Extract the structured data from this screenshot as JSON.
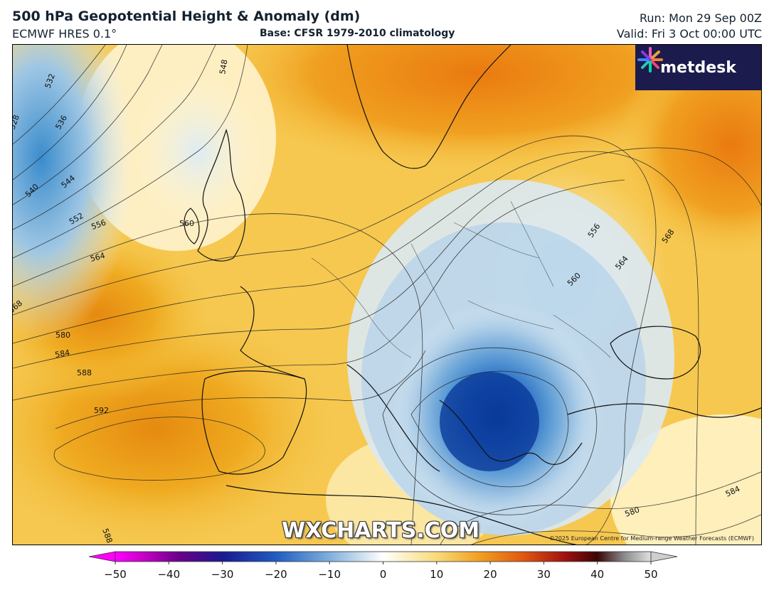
{
  "header": {
    "title": "500 hPa Geopotential Height & Anomaly (dm)",
    "model": "ECMWF HRES 0.1°",
    "base": "Base: CFSR 1979-2010 climatology",
    "run": "Run: Mon 29 Sep 00Z",
    "valid": "Valid: Fri 3 Oct 00:00 UTC"
  },
  "logo": {
    "text": "metdesk",
    "icon": "flower-logo-icon"
  },
  "watermark": "WXCHARTS.COM",
  "copyright": "©2025 European Centre for Medium-range Weather Forecasts (ECMWF)",
  "contour_labels": [
    "528",
    "532",
    "536",
    "540",
    "544",
    "548",
    "552",
    "556",
    "560",
    "564",
    "568",
    "580",
    "584",
    "588",
    "592",
    "556",
    "560",
    "564",
    "568",
    "580",
    "584",
    "588"
  ],
  "colorbar": {
    "ticks": [
      "−50",
      "−40",
      "−30",
      "−20",
      "−10",
      "0",
      "10",
      "20",
      "30",
      "40",
      "50"
    ],
    "min": -50,
    "max": 50,
    "colors": {
      "neg_extreme": "#ff00ff",
      "neg_deep": "#3a006e",
      "neg_strong": "#0a3fa0",
      "neg_mid": "#4a8fd0",
      "neg_light": "#bcd8ec",
      "zero": "#ffffff",
      "pos_light": "#fdf0b0",
      "pos_mid": "#f0b428",
      "pos_strong": "#e87810",
      "pos_deep": "#a01010",
      "pos_extreme": "#c8c8c8"
    }
  }
}
